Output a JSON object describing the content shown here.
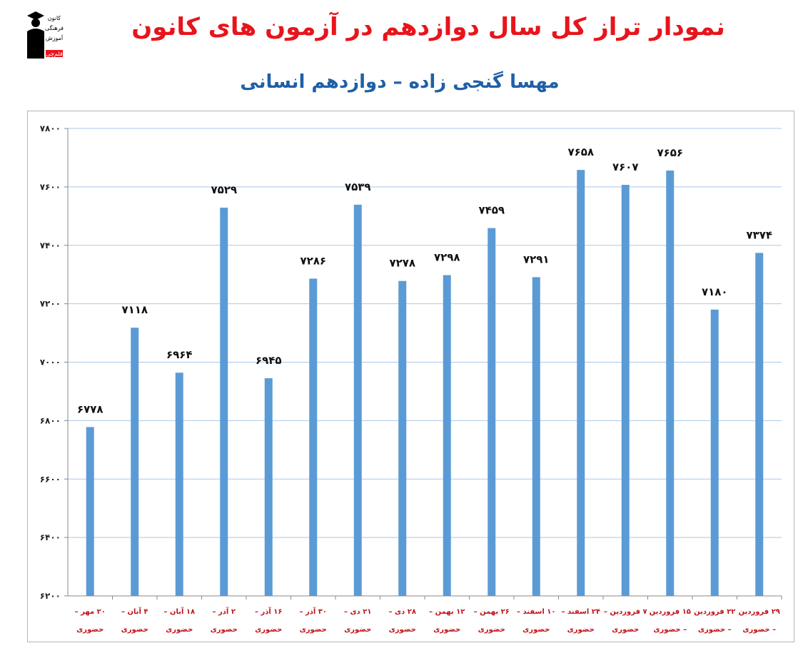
{
  "logo": {
    "lines": [
      "کانون",
      "فرهنگی",
      "آموزش",
      "قلم‌چی"
    ]
  },
  "chart_data": {
    "type": "bar",
    "title": "نمودار تراز کل سال دوازدهم در آزمون های کانون",
    "subtitle": "مهسا گنجی زاده – دوازدهم انسانی",
    "xlabel": "",
    "ylabel": "",
    "ylim": [
      6200,
      7800
    ],
    "yticks": [
      6200,
      6400,
      6600,
      6800,
      7000,
      7200,
      7400,
      7600,
      7800
    ],
    "ytick_labels": [
      "۶۲۰۰",
      "۶۴۰۰",
      "۶۶۰۰",
      "۶۸۰۰",
      "۷۰۰۰",
      "۷۲۰۰",
      "۷۴۰۰",
      "۷۶۰۰",
      "۷۸۰۰"
    ],
    "grid": true,
    "bar_color": "#5b9bd5",
    "label_color": "#c0141c",
    "categories": [
      [
        "۲۰ مهر –",
        "حضوری"
      ],
      [
        "۴ آبان –",
        "حضوری"
      ],
      [
        "۱۸ آبان –",
        "حضوری"
      ],
      [
        "۲ آذر –",
        "حضوری"
      ],
      [
        "۱۶ آذر –",
        "حضوری"
      ],
      [
        "۳۰ آذر –",
        "حضوری"
      ],
      [
        "۲۱ دی –",
        "حضوری"
      ],
      [
        "۲۸ دی –",
        "حضوری"
      ],
      [
        "۱۲ بهمن –",
        "حضوری"
      ],
      [
        "۲۶ بهمن –",
        "حضوری"
      ],
      [
        "۱۰ اسفند –",
        "حضوری"
      ],
      [
        "۲۴ اسفند –",
        "حضوری"
      ],
      [
        "۷ فروردین –",
        "حضوری"
      ],
      [
        "۱۵ فروردین",
        "– حضوری"
      ],
      [
        "۲۲ فروردین",
        "– حضوری"
      ],
      [
        "۲۹ فروردین",
        "– حضوری"
      ]
    ],
    "values": [
      6778,
      7118,
      6964,
      7529,
      6945,
      7286,
      7539,
      7278,
      7298,
      7459,
      7291,
      7658,
      7607,
      7656,
      7180,
      7374
    ],
    "value_labels": [
      "۶۷۷۸",
      "۷۱۱۸",
      "۶۹۶۴",
      "۷۵۲۹",
      "۶۹۴۵",
      "۷۲۸۶",
      "۷۵۳۹",
      "۷۲۷۸",
      "۷۲۹۸",
      "۷۴۵۹",
      "۷۲۹۱",
      "۷۶۵۸",
      "۷۶۰۷",
      "۷۶۵۶",
      "۷۱۸۰",
      "۷۳۷۴"
    ]
  }
}
